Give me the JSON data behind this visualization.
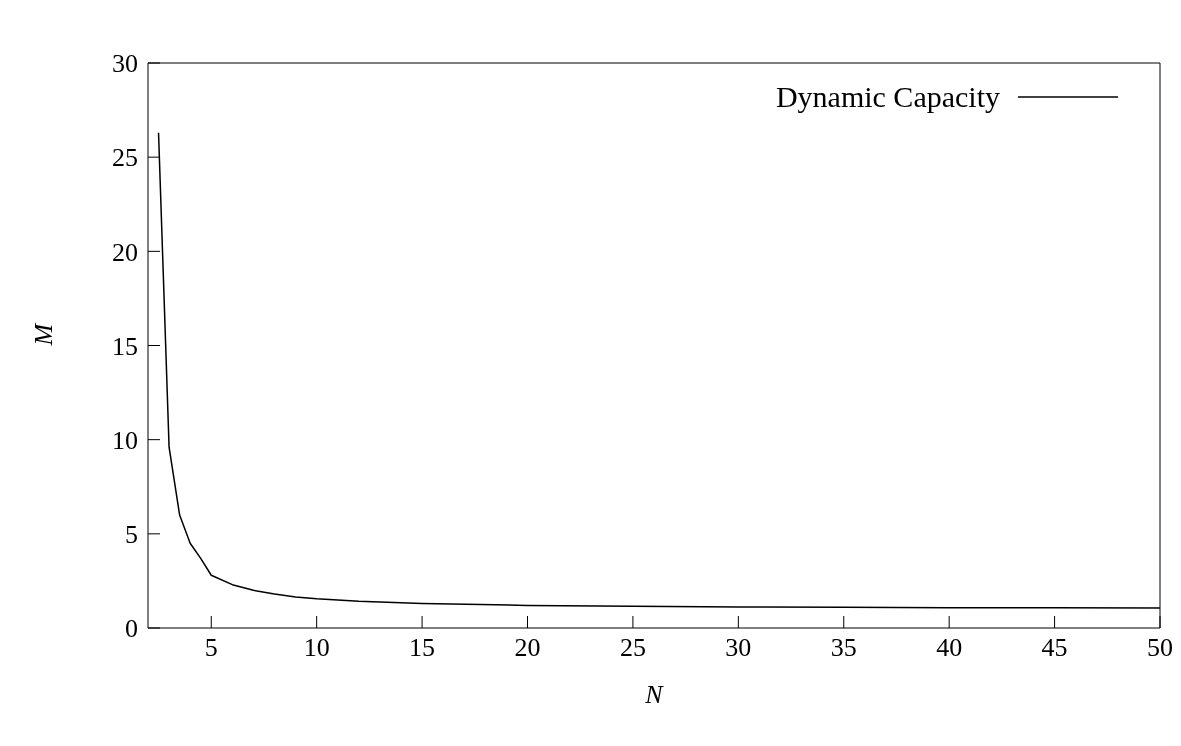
{
  "chart_data": {
    "type": "line",
    "xlabel": "N",
    "ylabel": "M",
    "series": [
      {
        "name": "Dynamic Capacity",
        "color": "#000000",
        "x": [
          2.5,
          3,
          3.5,
          4,
          4.5,
          5,
          6,
          7,
          8,
          9,
          10,
          12,
          15,
          20,
          25,
          30,
          35,
          40,
          45,
          50
        ],
        "values": [
          26.3,
          9.6,
          6.0,
          4.5,
          3.7,
          2.8,
          2.3,
          2.0,
          1.8,
          1.65,
          1.55,
          1.42,
          1.3,
          1.2,
          1.15,
          1.12,
          1.1,
          1.08,
          1.07,
          1.06
        ]
      }
    ],
    "xlim": [
      2,
      50
    ],
    "xticks": [
      5,
      10,
      15,
      20,
      25,
      30,
      35,
      40,
      45,
      50
    ],
    "ylim": [
      0,
      30
    ],
    "yticks": [
      0,
      5,
      10,
      15,
      20,
      25,
      30
    ],
    "legend": "top right",
    "marker": "none",
    "line_style": "solid"
  }
}
